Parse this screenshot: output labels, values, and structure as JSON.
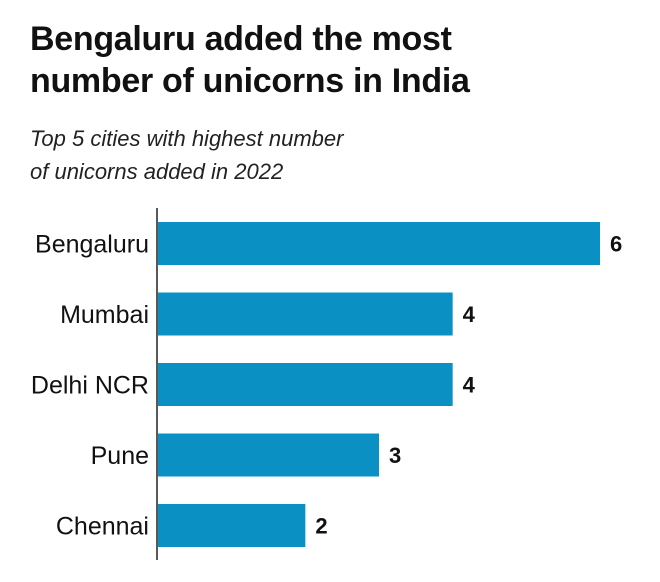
{
  "title_lines": [
    "Bengaluru added the most",
    "number of unicorns in India"
  ],
  "subtitle_lines": [
    "Top 5 cities with highest number",
    "of unicorns added in 2022"
  ],
  "colors": {
    "bar": "#0b90c4",
    "axis": "#222222"
  },
  "chart_data": {
    "type": "bar",
    "orientation": "horizontal",
    "title": "Bengaluru added the most number of unicorns in India",
    "subtitle": "Top 5 cities with highest number of unicorns added in 2022",
    "categories": [
      "Bengaluru",
      "Mumbai",
      "Delhi NCR",
      "Pune",
      "Chennai"
    ],
    "values": [
      6,
      4,
      4,
      3,
      2
    ],
    "value_labels": [
      "6",
      "4",
      "4",
      "3",
      "2"
    ],
    "xlabel": "",
    "ylabel": "",
    "xlim": [
      0,
      6
    ],
    "grid": false,
    "legend": "none"
  }
}
